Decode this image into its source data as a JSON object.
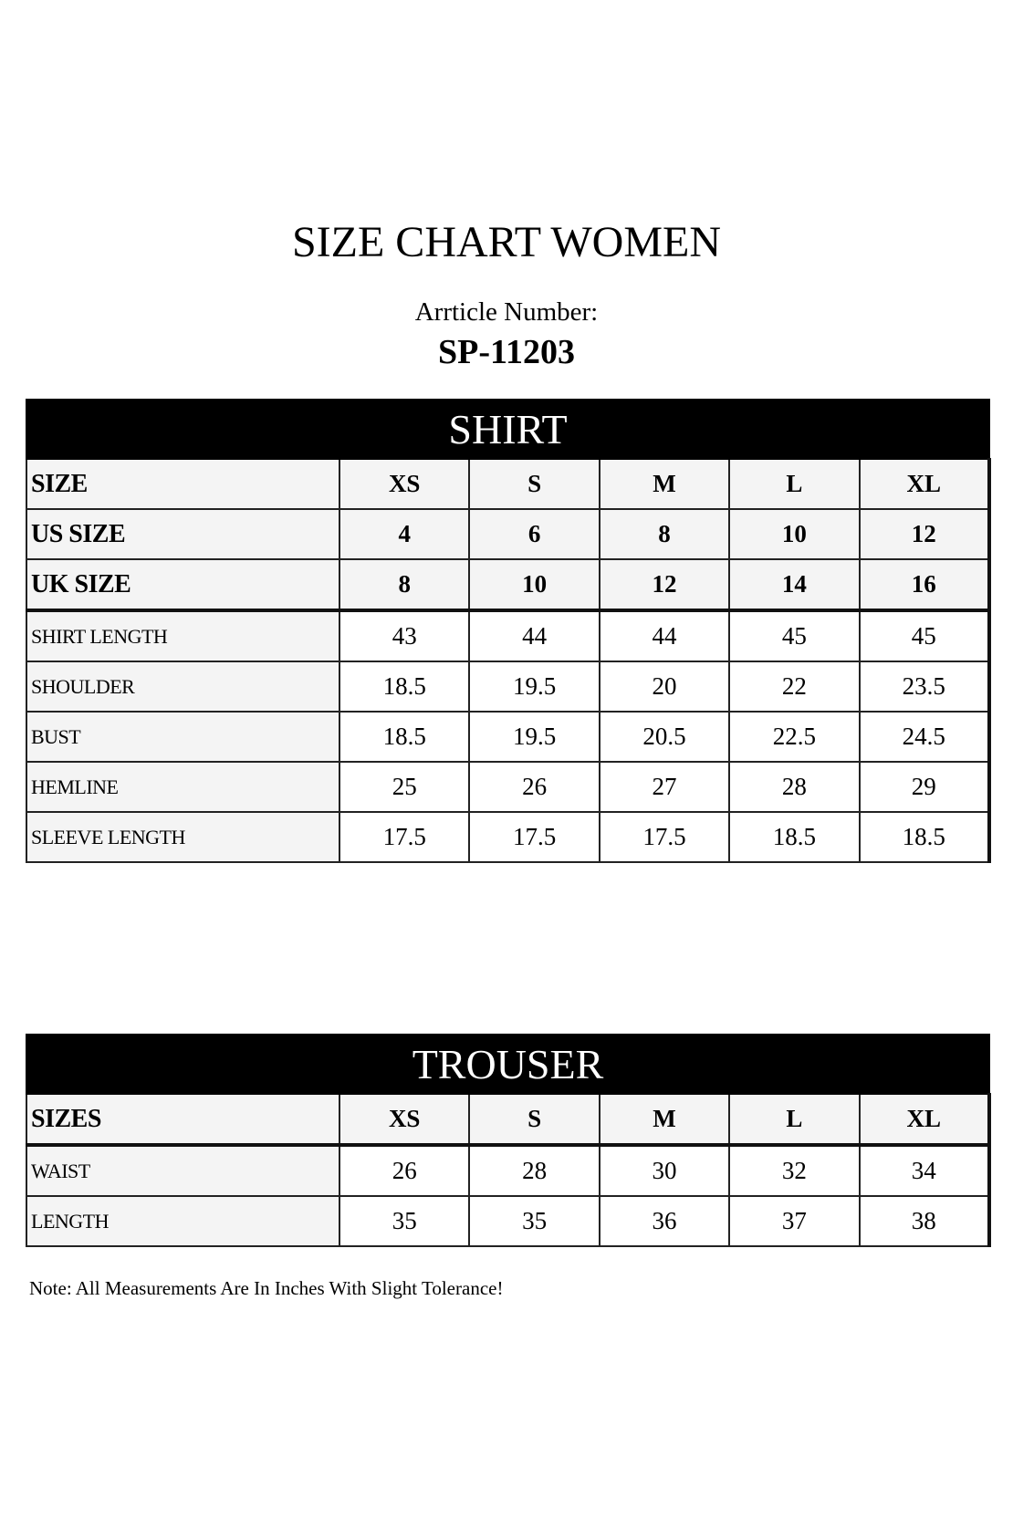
{
  "title": "SIZE CHART WOMEN",
  "article_label": "Arrticle Number:",
  "article_number": "SP-11203",
  "shirt": {
    "heading": "SHIRT",
    "size_rows": [
      {
        "label": "SIZE",
        "values": [
          "XS",
          "S",
          "M",
          "L",
          "XL"
        ]
      },
      {
        "label": "US SIZE",
        "values": [
          "4",
          "6",
          "8",
          "10",
          "12"
        ]
      },
      {
        "label": "UK SIZE",
        "values": [
          "8",
          "10",
          "12",
          "14",
          "16"
        ]
      }
    ],
    "rows": [
      {
        "label": "SHIRT LENGTH",
        "values": [
          "43",
          "44",
          "44",
          "45",
          "45"
        ]
      },
      {
        "label": "SHOULDER",
        "values": [
          "18.5",
          "19.5",
          "20",
          "22",
          "23.5"
        ]
      },
      {
        "label": "BUST",
        "values": [
          "18.5",
          "19.5",
          "20.5",
          "22.5",
          "24.5"
        ]
      },
      {
        "label": "HEMLINE",
        "values": [
          "25",
          "26",
          "27",
          "28",
          "29"
        ]
      },
      {
        "label": "SLEEVE LENGTH",
        "values": [
          "17.5",
          "17.5",
          "17.5",
          "18.5",
          "18.5"
        ]
      }
    ]
  },
  "trouser": {
    "heading": "TROUSER",
    "size_rows": [
      {
        "label": "SIZES",
        "values": [
          "XS",
          "S",
          "M",
          "L",
          "XL"
        ]
      }
    ],
    "rows": [
      {
        "label": "WAIST",
        "values": [
          "26",
          "28",
          "30",
          "32",
          "34"
        ]
      },
      {
        "label": "LENGTH",
        "values": [
          "35",
          "35",
          "36",
          "37",
          "38"
        ]
      }
    ]
  },
  "note": "Note: All Measurements Are In Inches With Slight Tolerance!"
}
